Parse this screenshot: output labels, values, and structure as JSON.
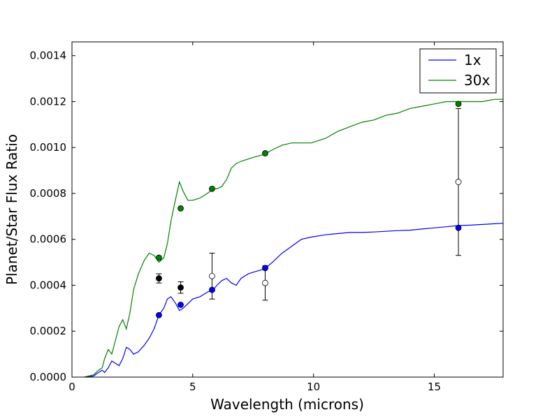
{
  "chart_data": {
    "type": "line",
    "title": "",
    "xlabel": "Wavelength (microns)",
    "ylabel": "Planet/Star Flux Ratio",
    "xlim": [
      0,
      17.85
    ],
    "ylim": [
      0,
      0.00146
    ],
    "x_ticks": [
      0,
      5,
      10,
      15
    ],
    "x_tick_labels": [
      "0",
      "5",
      "10",
      "15"
    ],
    "y_ticks": [
      0,
      0.0002,
      0.0004,
      0.0006,
      0.0008,
      0.001,
      0.0012,
      0.0014
    ],
    "y_tick_labels": [
      "0.0000",
      "0.0002",
      "0.0004",
      "0.0006",
      "0.0008",
      "0.0010",
      "0.0012",
      "0.0014"
    ],
    "grid": false,
    "legend_position": "top-right",
    "series": [
      {
        "name": "1x",
        "color": "#0000ff",
        "x": [
          0.5,
          0.9,
          1.1,
          1.25,
          1.35,
          1.5,
          1.65,
          1.8,
          1.95,
          2.1,
          2.25,
          2.4,
          2.55,
          2.75,
          3.0,
          3.2,
          3.4,
          3.6,
          3.8,
          3.95,
          4.1,
          4.3,
          4.45,
          4.6,
          4.8,
          5.0,
          5.3,
          5.6,
          5.85,
          6.0,
          6.2,
          6.4,
          6.6,
          6.8,
          7.0,
          7.3,
          7.6,
          7.95,
          8.3,
          8.7,
          9.1,
          9.5,
          9.9,
          10.5,
          11.0,
          11.5,
          12.0,
          12.5,
          13.0,
          13.5,
          14.0,
          14.5,
          15.0,
          15.5,
          16.0,
          16.5,
          17.0,
          17.5,
          17.85
        ],
        "values": [
          0.0,
          5e-06,
          2e-05,
          3e-05,
          2e-05,
          4e-05,
          7e-05,
          6e-05,
          5e-05,
          8e-05,
          0.00013,
          0.00012,
          0.0001,
          0.00011,
          0.00014,
          0.00017,
          0.00021,
          0.00027,
          0.0003,
          0.00034,
          0.00035,
          0.00032,
          0.00029,
          0.0003,
          0.00032,
          0.00034,
          0.00035,
          0.00037,
          0.00038,
          0.0004,
          0.00042,
          0.00043,
          0.00041,
          0.0004,
          0.00043,
          0.00045,
          0.00046,
          0.00047,
          0.0005,
          0.00054,
          0.00057,
          0.0006,
          0.00061,
          0.00062,
          0.000625,
          0.00063,
          0.00063,
          0.000632,
          0.000635,
          0.000638,
          0.00064,
          0.000645,
          0.00065,
          0.000655,
          0.00066,
          0.000662,
          0.000665,
          0.000668,
          0.00067
        ]
      },
      {
        "name": "30x",
        "color": "#008000",
        "x": [
          0.5,
          0.9,
          1.1,
          1.25,
          1.35,
          1.5,
          1.65,
          1.8,
          1.95,
          2.1,
          2.25,
          2.4,
          2.55,
          2.75,
          3.0,
          3.2,
          3.4,
          3.6,
          3.8,
          3.95,
          4.1,
          4.3,
          4.45,
          4.6,
          4.8,
          5.0,
          5.3,
          5.6,
          5.85,
          6.0,
          6.2,
          6.4,
          6.6,
          6.8,
          7.0,
          7.3,
          7.6,
          7.95,
          8.3,
          8.7,
          9.1,
          9.5,
          9.9,
          10.5,
          11.0,
          11.5,
          12.0,
          12.5,
          13.0,
          13.5,
          14.0,
          14.5,
          15.0,
          15.5,
          16.0,
          16.5,
          17.0,
          17.5,
          17.85
        ],
        "values": [
          0.0,
          1e-05,
          3e-05,
          4e-05,
          8e-05,
          0.00012,
          0.0001,
          0.00016,
          0.00022,
          0.00025,
          0.00021,
          0.00028,
          0.00038,
          0.00045,
          0.00051,
          0.00054,
          0.00053,
          0.0005,
          0.00052,
          0.00058,
          0.00068,
          0.00078,
          0.00085,
          0.00081,
          0.00077,
          0.00077,
          0.00078,
          0.0008,
          0.00082,
          0.00082,
          0.00083,
          0.00086,
          0.00091,
          0.00093,
          0.00094,
          0.00095,
          0.00096,
          0.00097,
          0.00099,
          0.00101,
          0.00102,
          0.00102,
          0.00102,
          0.00104,
          0.00107,
          0.00109,
          0.00111,
          0.00112,
          0.00114,
          0.00115,
          0.00117,
          0.00118,
          0.00119,
          0.0012,
          0.0012,
          0.0012,
          0.0012,
          0.00121,
          0.00121
        ]
      }
    ],
    "markers_1x": {
      "color": "#0000ff",
      "x": [
        3.6,
        4.5,
        5.8,
        8.0,
        16.0
      ],
      "y": [
        0.00027,
        0.000315,
        0.00038,
        0.000475,
        0.00065
      ]
    },
    "markers_30x": {
      "color": "#008000",
      "x": [
        3.6,
        4.5,
        5.8,
        8.0,
        16.0
      ],
      "y": [
        0.00052,
        0.000735,
        0.00082,
        0.000975,
        0.00119
      ]
    },
    "observed_filled": {
      "color": "#000000",
      "x": [
        3.6,
        4.5
      ],
      "y": [
        0.00043,
        0.00039
      ],
      "err": [
        2e-05,
        2.5e-05
      ]
    },
    "observed_open": {
      "color": "#ffffff",
      "x": [
        5.8,
        8.0,
        16.0
      ],
      "y": [
        0.00044,
        0.00041,
        0.00085
      ],
      "err": [
        0.0001,
        7.5e-05,
        0.00032
      ]
    }
  }
}
